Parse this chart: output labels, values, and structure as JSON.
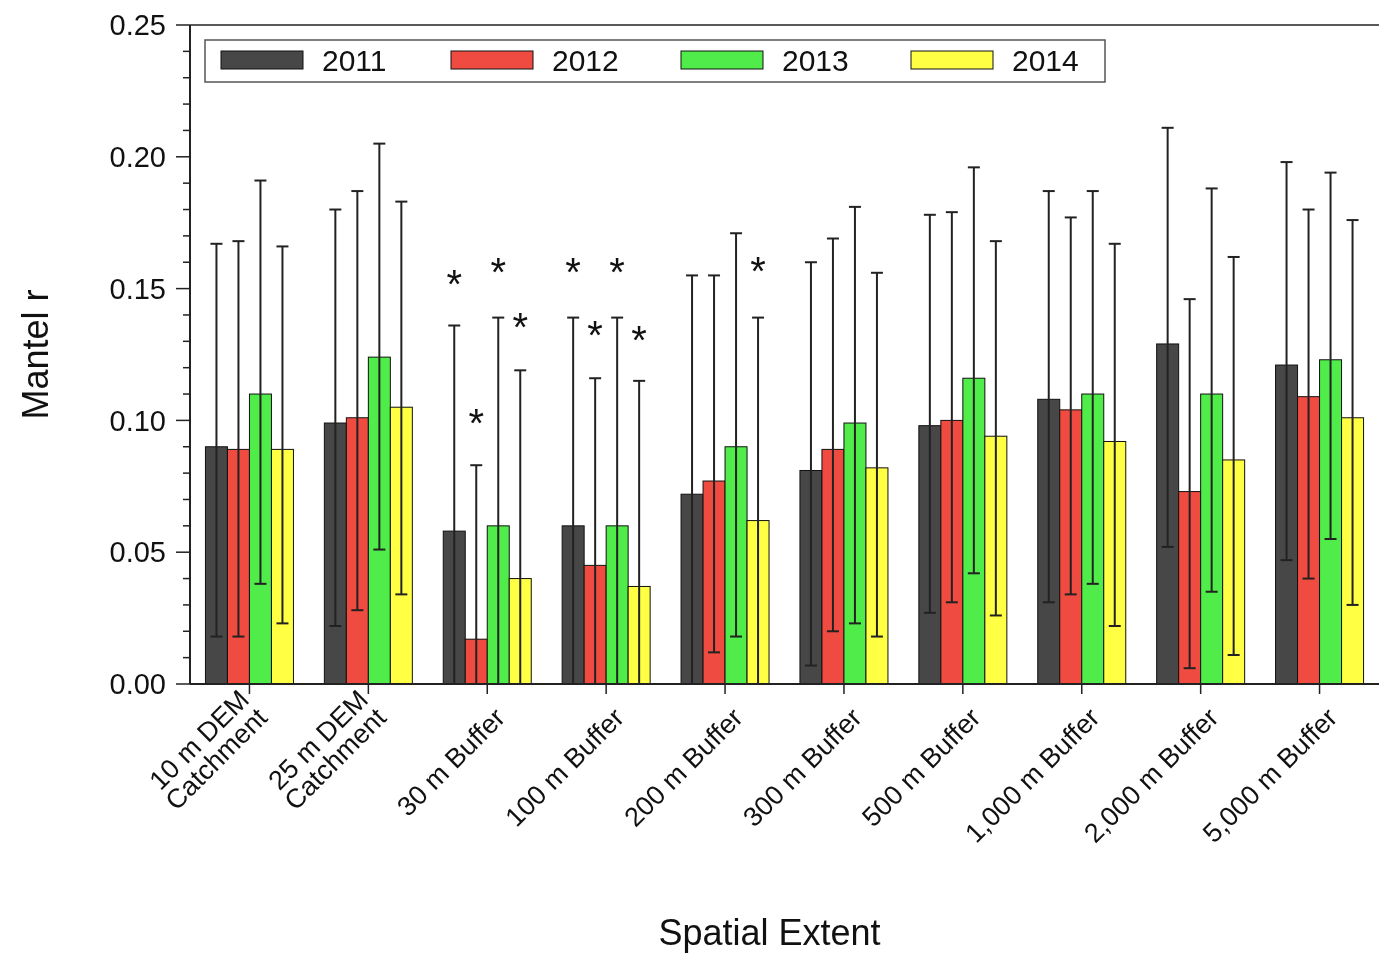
{
  "chart_data": {
    "type": "bar",
    "xlabel": "Spatial Extent",
    "ylabel": "Mantel r",
    "categories": [
      "10 m DEM\nCatchment",
      "25 m DEM\nCatchment",
      "30 m Buffer",
      "100 m Buffer",
      "200 m Buffer",
      "300 m Buffer",
      "500 m Buffer",
      "1,000 m Buffer",
      "2,000 m Buffer",
      "5,000 m Buffer"
    ],
    "series": [
      {
        "name": "2011",
        "color": "#474747",
        "values": [
          0.09,
          0.099,
          0.058,
          0.06,
          0.072,
          0.081,
          0.098,
          0.108,
          0.129,
          0.121
        ],
        "errors": [
          [
            0.018,
            0.167
          ],
          [
            0.022,
            0.18
          ],
          [
            0,
            0.136
          ],
          [
            0,
            0.139
          ],
          [
            0,
            0.155
          ],
          [
            0.007,
            0.16
          ],
          [
            0.027,
            0.178
          ],
          [
            0.031,
            0.187
          ],
          [
            0.052,
            0.211
          ],
          [
            0.047,
            0.198
          ]
        ]
      },
      {
        "name": "2012",
        "color": "#f04b40",
        "values": [
          0.089,
          0.101,
          0.017,
          0.045,
          0.077,
          0.089,
          0.1,
          0.104,
          0.073,
          0.109
        ],
        "errors": [
          [
            0.018,
            0.168
          ],
          [
            0.028,
            0.187
          ],
          [
            0,
            0.083
          ],
          [
            0,
            0.116
          ],
          [
            0.012,
            0.155
          ],
          [
            0.02,
            0.169
          ],
          [
            0.031,
            0.179
          ],
          [
            0.034,
            0.177
          ],
          [
            0.006,
            0.146
          ],
          [
            0.04,
            0.18
          ]
        ]
      },
      {
        "name": "2013",
        "color": "#50ec4a",
        "values": [
          0.11,
          0.124,
          0.06,
          0.06,
          0.09,
          0.099,
          0.116,
          0.11,
          0.11,
          0.123
        ],
        "errors": [
          [
            0.038,
            0.191
          ],
          [
            0.051,
            0.205
          ],
          [
            0,
            0.139
          ],
          [
            0,
            0.139
          ],
          [
            0.018,
            0.171
          ],
          [
            0.023,
            0.181
          ],
          [
            0.042,
            0.196
          ],
          [
            0.038,
            0.187
          ],
          [
            0.035,
            0.188
          ],
          [
            0.055,
            0.194
          ]
        ]
      },
      {
        "name": "2014",
        "color": "#ffff44",
        "values": [
          0.089,
          0.105,
          0.04,
          0.037,
          0.062,
          0.082,
          0.094,
          0.092,
          0.085,
          0.101
        ],
        "errors": [
          [
            0.023,
            0.166
          ],
          [
            0.034,
            0.183
          ],
          [
            0,
            0.119
          ],
          [
            0,
            0.115
          ],
          [
            0,
            0.139
          ],
          [
            0.018,
            0.156
          ],
          [
            0.026,
            0.168
          ],
          [
            0.022,
            0.167
          ],
          [
            0.011,
            0.162
          ],
          [
            0.03,
            0.176
          ]
        ]
      }
    ],
    "ylim": [
      0,
      0.25
    ],
    "yticks": [
      {
        "value": 0,
        "label": "0.00"
      },
      {
        "value": 0.01,
        "label": null
      },
      {
        "value": 0.02,
        "label": null
      },
      {
        "value": 0.03,
        "label": null
      },
      {
        "value": 0.04,
        "label": null
      },
      {
        "value": 0.05,
        "label": "0.05"
      },
      {
        "value": 0.06,
        "label": null
      },
      {
        "value": 0.07,
        "label": null
      },
      {
        "value": 0.08,
        "label": null
      },
      {
        "value": 0.09,
        "label": null
      },
      {
        "value": 0.1,
        "label": "0.10"
      },
      {
        "value": 0.11,
        "label": null
      },
      {
        "value": 0.12,
        "label": null
      },
      {
        "value": 0.13,
        "label": null
      },
      {
        "value": 0.14,
        "label": null
      },
      {
        "value": 0.15,
        "label": "0.15"
      },
      {
        "value": 0.16,
        "label": null
      },
      {
        "value": 0.17,
        "label": null
      },
      {
        "value": 0.18,
        "label": null
      },
      {
        "value": 0.19,
        "label": null
      },
      {
        "value": 0.2,
        "label": "0.20"
      },
      {
        "value": 0.21,
        "label": null
      },
      {
        "value": 0.22,
        "label": null
      },
      {
        "value": 0.23,
        "label": null
      },
      {
        "value": 0.24,
        "label": null
      },
      {
        "value": 0.25,
        "label": "0.25"
      }
    ],
    "legend": "top left",
    "annotations": [
      "*",
      "*",
      "*",
      "*",
      "*",
      "*",
      "*",
      "*",
      "*"
    ]
  }
}
